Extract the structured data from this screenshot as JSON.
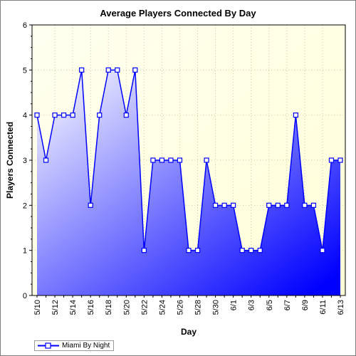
{
  "chart_data": {
    "type": "area",
    "title": "Average Players Connected By Day",
    "xlabel": "Day",
    "ylabel": "Players Connected",
    "ylim": [
      0,
      6
    ],
    "y_ticks": [
      "0",
      "1",
      "2",
      "3",
      "4",
      "5",
      "6"
    ],
    "grid": true,
    "legend_position": "bottom-left",
    "x": [
      "5/10",
      "5/11",
      "5/12",
      "5/13",
      "5/14",
      "5/15",
      "5/16",
      "5/17",
      "5/18",
      "5/19",
      "5/20",
      "5/21",
      "5/22",
      "5/23",
      "5/24",
      "5/25",
      "5/26",
      "5/27",
      "5/28",
      "5/29",
      "5/30",
      "5/31",
      "6/1",
      "6/2",
      "6/3",
      "6/4",
      "6/5",
      "6/6",
      "6/7",
      "6/8",
      "6/9",
      "6/10",
      "6/11",
      "6/12",
      "6/13"
    ],
    "x_tick_labels": [
      "5/10",
      "5/12",
      "5/14",
      "5/16",
      "5/18",
      "5/20",
      "5/22",
      "5/24",
      "5/26",
      "5/28",
      "5/30",
      "6/1",
      "6/3",
      "6/5",
      "6/7",
      "6/9",
      "6/11",
      "6/13"
    ],
    "series": [
      {
        "name": "Miami By Night",
        "values": [
          4,
          3,
          4,
          4,
          4,
          5,
          2,
          4,
          5,
          5,
          4,
          5,
          1,
          3,
          3,
          3,
          3,
          1,
          1,
          3,
          2,
          2,
          2,
          1,
          1,
          1,
          2,
          2,
          2,
          4,
          2,
          2,
          1,
          3,
          3
        ]
      }
    ],
    "colors": {
      "plot_bg_top": "#fffff0",
      "plot_bg_bottom": "#ffffd8",
      "area_light": "#ffffff",
      "area_dark": "#0000ff",
      "line": "#0000ff",
      "grid": "#c8c8a8"
    }
  }
}
